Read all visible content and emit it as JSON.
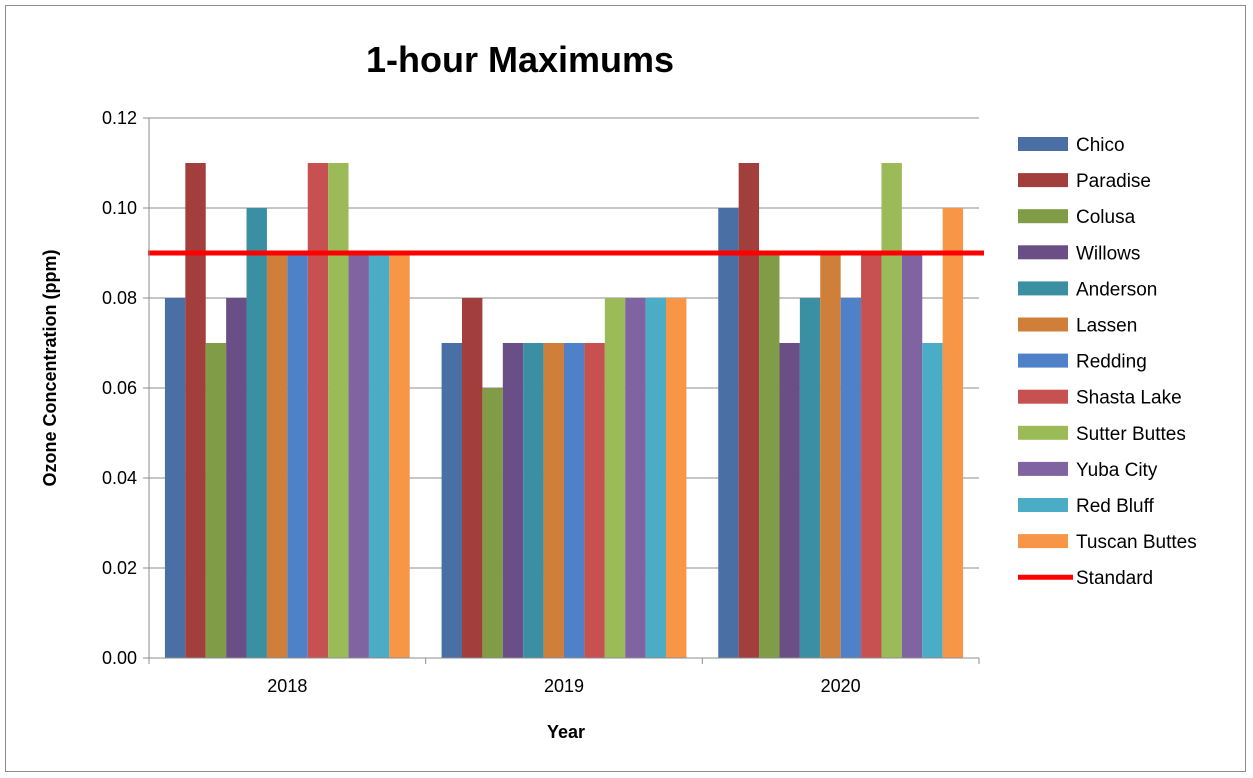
{
  "chart_data": {
    "type": "bar",
    "title": "1-hour Maximums",
    "xlabel": "Year",
    "ylabel": "Ozone Concentration (ppm)",
    "categories": [
      "2018",
      "2019",
      "2020"
    ],
    "ylim": [
      0,
      0.12
    ],
    "yticks": [
      "0.00",
      "0.02",
      "0.04",
      "0.06",
      "0.08",
      "0.10",
      "0.12"
    ],
    "grid": true,
    "legend_position": "right",
    "series": [
      {
        "name": "Chico",
        "color": "#4a6fa5",
        "values": [
          0.08,
          0.07,
          0.1
        ]
      },
      {
        "name": "Paradise",
        "color": "#a23e3c",
        "values": [
          0.11,
          0.08,
          0.11
        ]
      },
      {
        "name": "Colusa",
        "color": "#809c47",
        "values": [
          0.07,
          0.06,
          0.09
        ]
      },
      {
        "name": "Willows",
        "color": "#6a4f86",
        "values": [
          0.08,
          0.07,
          0.07
        ]
      },
      {
        "name": "Anderson",
        "color": "#3a8fa3",
        "values": [
          0.1,
          0.07,
          0.08
        ]
      },
      {
        "name": "Lassen",
        "color": "#d07f3a",
        "values": [
          0.09,
          0.07,
          0.09
        ]
      },
      {
        "name": "Redding",
        "color": "#4f81c8",
        "values": [
          0.09,
          0.07,
          0.08
        ]
      },
      {
        "name": "Shasta Lake",
        "color": "#c75050",
        "values": [
          0.11,
          0.07,
          0.09
        ]
      },
      {
        "name": "Sutter Buttes",
        "color": "#9bbb59",
        "values": [
          0.11,
          0.08,
          0.11
        ]
      },
      {
        "name": "Yuba City",
        "color": "#8064a2",
        "values": [
          0.09,
          0.08,
          0.09
        ]
      },
      {
        "name": "Red Bluff",
        "color": "#4bacc6",
        "values": [
          0.09,
          0.08,
          0.07
        ]
      },
      {
        "name": "Tuscan Buttes",
        "color": "#f79646",
        "values": [
          0.09,
          0.08,
          0.1
        ]
      }
    ],
    "reference_line": {
      "name": "Standard",
      "value": 0.09,
      "color": "#ff0000"
    }
  }
}
